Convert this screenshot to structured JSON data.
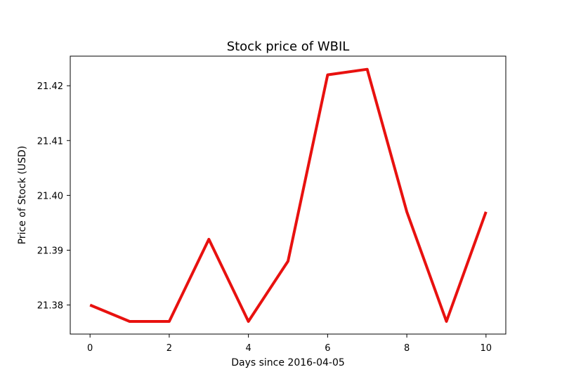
{
  "chart_data": {
    "type": "line",
    "title": "Stock price of WBIL",
    "xlabel": "Days since 2016-04-05",
    "ylabel": "Price of Stock (USD)",
    "x": [
      0,
      1,
      2,
      3,
      4,
      5,
      6,
      7,
      8,
      9,
      10
    ],
    "series": [
      {
        "values": [
          21.38,
          21.377,
          21.377,
          21.392,
          21.377,
          21.388,
          21.422,
          21.423,
          21.397,
          21.377,
          21.397
        ],
        "color": "#e8110f"
      }
    ],
    "xlim": [
      -0.5,
      10.5
    ],
    "ylim": [
      21.3747,
      21.4254
    ],
    "xticks": [
      0,
      2,
      4,
      6,
      8,
      10
    ],
    "xtick_labels": [
      "0",
      "2",
      "4",
      "6",
      "8",
      "10"
    ],
    "yticks": [
      21.38,
      21.39,
      21.4,
      21.41,
      21.42
    ],
    "ytick_labels": [
      "21.38",
      "21.39",
      "21.40",
      "21.41",
      "21.42"
    ],
    "grid": false,
    "legend": false
  }
}
